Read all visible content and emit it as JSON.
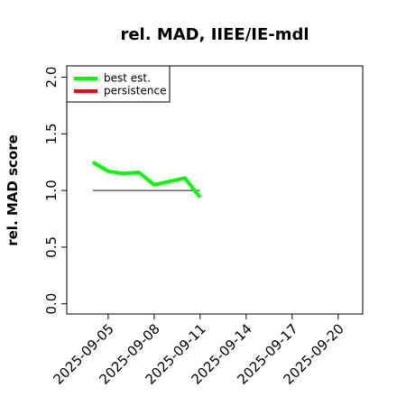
{
  "chart_data": {
    "type": "line",
    "title": "rel. MAD, IIEE/IE-mdl",
    "y_label": "rel. MAD score",
    "x": [
      "2025-09-04",
      "2025-09-05",
      "2025-09-06",
      "2025-09-07",
      "2025-09-08",
      "2025-09-09",
      "2025-09-10",
      "2025-09-11"
    ],
    "series": [
      {
        "name": "best est.",
        "color": "#00ff00",
        "values": [
          1.25,
          1.17,
          1.15,
          1.16,
          1.05,
          1.08,
          1.11,
          0.94
        ]
      },
      {
        "name": "persistence",
        "color": "#ff0000",
        "values": [
          null,
          null,
          null,
          null,
          null,
          null,
          null,
          null
        ]
      }
    ],
    "reference_line": {
      "value": 1.0,
      "x": [
        "2025-09-04",
        "2025-09-11"
      ],
      "color": "#666666"
    },
    "xlim": [
      "2025-09-02T07:12",
      "2025-09-21T14:24"
    ],
    "xticks": [
      "2025-09-05",
      "2025-09-08",
      "2025-09-11",
      "2025-09-14",
      "2025-09-17",
      "2025-09-20"
    ],
    "ylim": [
      -0.09,
      2.1
    ],
    "yticks": [
      {
        "value": 0,
        "label": "0.0"
      },
      0.5,
      {
        "value": 1,
        "label": "1.0"
      },
      1.5,
      {
        "value": 2,
        "label": "2.0"
      }
    ],
    "legend": "top-left"
  }
}
